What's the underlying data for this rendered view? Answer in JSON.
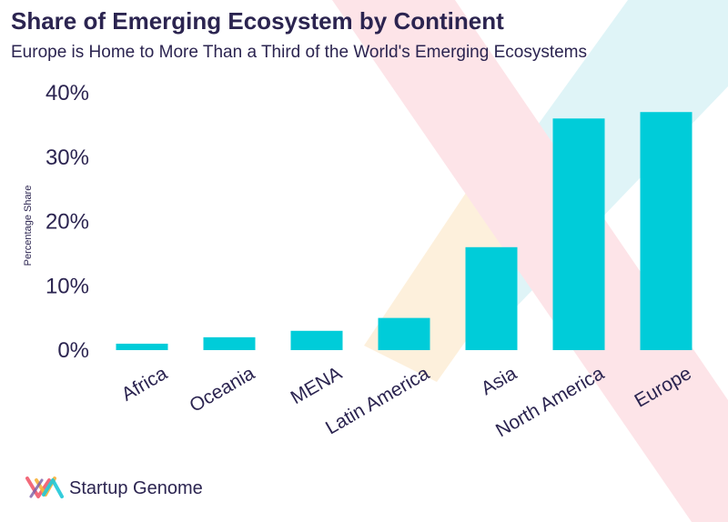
{
  "header": {
    "title": "Share of Emerging Ecosystem by Continent",
    "subtitle": "Europe is Home to More Than a Third of the World's Emerging Ecosystems"
  },
  "brand": {
    "name": "Startup Genome",
    "logo_icon": "startup-genome-logo-icon",
    "colors": [
      "#f26a7a",
      "#f7b23b",
      "#1fc8d8",
      "#7b5ea7"
    ]
  },
  "colors": {
    "bar": "#00ccd9",
    "text": "#2b2450",
    "deco_pink": "#fde4e8",
    "deco_cyan": "#dff4f7",
    "deco_yellow": "#fdf0dc"
  },
  "chart_data": {
    "type": "bar",
    "title": "",
    "xlabel": "",
    "ylabel": "Percentage Share",
    "categories": [
      "Africa",
      "Oceania",
      "MENA",
      "Latin America",
      "Asia",
      "North America",
      "Europe"
    ],
    "values": [
      1,
      2,
      3,
      5,
      16,
      36,
      37
    ],
    "ylim": [
      0,
      40
    ],
    "yticks": [
      0,
      10,
      20,
      30,
      40
    ],
    "ytick_labels": [
      "0%",
      "10%",
      "20%",
      "30%",
      "40%"
    ],
    "grid": false,
    "legend": "none"
  }
}
